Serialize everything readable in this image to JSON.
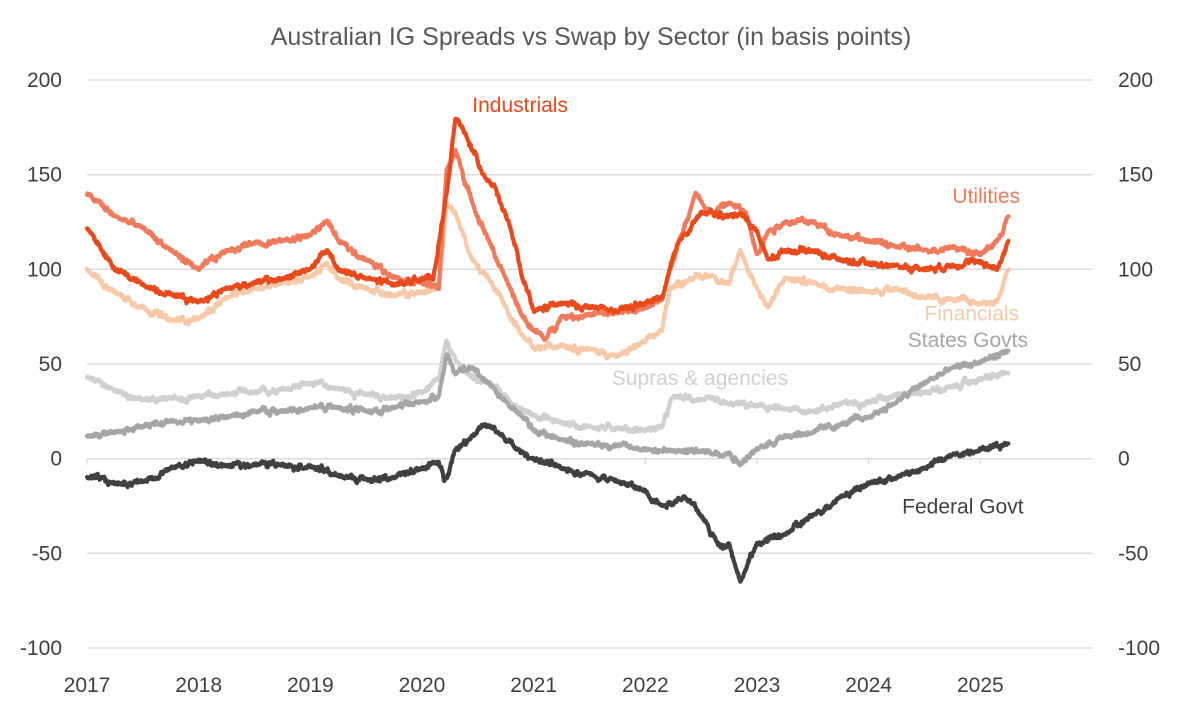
{
  "chart_data": {
    "type": "line",
    "title": "Australian IG Spreads vs Swap by Sector (in basis points)",
    "xlabel": "",
    "ylabel": "",
    "xlim": [
      2017.0,
      2026.0
    ],
    "ylim": [
      -100,
      200
    ],
    "yticks": [
      200,
      150,
      100,
      50,
      0,
      -50,
      -100
    ],
    "ytick_labels": [
      "200",
      "150",
      "100",
      "50",
      "0",
      "-50",
      "-100"
    ],
    "xticks": [
      2017,
      2018,
      2019,
      2020,
      2021,
      2022,
      2023,
      2024,
      2025
    ],
    "xtick_labels": [
      "2017",
      "2018",
      "2019",
      "2020",
      "2021",
      "2022",
      "2023",
      "2024",
      "2025"
    ],
    "grid": true,
    "series": [
      {
        "name": "Supras & agencies",
        "color": "#d0d0d0",
        "x": [
          2017.0,
          2017.25,
          2017.5,
          2017.75,
          2018.0,
          2018.25,
          2018.5,
          2018.75,
          2019.0,
          2019.25,
          2019.5,
          2019.75,
          2020.0,
          2020.15,
          2020.22,
          2020.3,
          2020.4,
          2020.6,
          2020.75,
          2020.85,
          2021.0,
          2021.25,
          2021.5,
          2021.75,
          2022.0,
          2022.15,
          2022.25,
          2022.5,
          2022.75,
          2023.0,
          2023.25,
          2023.5,
          2023.75,
          2024.0,
          2024.25,
          2024.5,
          2024.75,
          2025.0,
          2025.25
        ],
        "values": [
          43,
          36,
          31,
          32,
          33,
          34,
          35,
          37,
          40,
          37,
          34,
          32,
          35,
          42,
          62,
          52,
          45,
          40,
          33,
          27,
          23,
          19,
          17,
          16,
          15,
          17,
          33,
          31,
          29,
          28,
          26,
          25,
          29,
          30,
          34,
          35,
          38,
          42,
          45
        ]
      },
      {
        "name": "Financials",
        "color": "#f8c9a8",
        "x": [
          2017.0,
          2017.25,
          2017.5,
          2017.75,
          2018.0,
          2018.25,
          2018.5,
          2018.75,
          2019.0,
          2019.15,
          2019.25,
          2019.5,
          2019.75,
          2020.0,
          2020.15,
          2020.22,
          2020.3,
          2020.45,
          2020.6,
          2020.75,
          2020.9,
          2021.0,
          2021.25,
          2021.5,
          2021.75,
          2022.0,
          2022.15,
          2022.22,
          2022.4,
          2022.6,
          2022.75,
          2022.85,
          2023.0,
          2023.1,
          2023.25,
          2023.5,
          2023.75,
          2024.0,
          2024.25,
          2024.5,
          2024.75,
          2025.0,
          2025.15,
          2025.25
        ],
        "values": [
          100,
          88,
          80,
          73,
          74,
          85,
          90,
          93,
          96,
          103,
          95,
          90,
          86,
          88,
          90,
          135,
          130,
          105,
          95,
          80,
          65,
          58,
          60,
          58,
          54,
          62,
          68,
          90,
          95,
          97,
          92,
          110,
          90,
          80,
          95,
          93,
          90,
          88,
          90,
          85,
          84,
          82,
          83,
          100
        ]
      },
      {
        "name": "Utilities",
        "color": "#f07b5c",
        "x": [
          2017.0,
          2017.25,
          2017.5,
          2017.75,
          2018.0,
          2018.25,
          2018.5,
          2018.75,
          2019.0,
          2019.15,
          2019.25,
          2019.5,
          2019.75,
          2020.0,
          2020.15,
          2020.22,
          2020.3,
          2020.45,
          2020.6,
          2020.75,
          2020.9,
          2021.0,
          2021.1,
          2021.25,
          2021.5,
          2021.75,
          2022.0,
          2022.15,
          2022.3,
          2022.45,
          2022.6,
          2022.75,
          2022.9,
          2023.0,
          2023.1,
          2023.25,
          2023.5,
          2023.75,
          2024.0,
          2024.25,
          2024.5,
          2024.75,
          2025.0,
          2025.15,
          2025.25
        ],
        "values": [
          140,
          128,
          122,
          110,
          100,
          110,
          114,
          115,
          118,
          126,
          115,
          105,
          96,
          93,
          90,
          152,
          163,
          135,
          115,
          95,
          75,
          68,
          63,
          75,
          76,
          77,
          80,
          84,
          115,
          140,
          130,
          135,
          130,
          108,
          120,
          125,
          125,
          118,
          115,
          112,
          110,
          112,
          108,
          115,
          128
        ]
      },
      {
        "name": "Industrials",
        "color": "#e84a1c",
        "x": [
          2017.0,
          2017.25,
          2017.5,
          2017.75,
          2018.0,
          2018.25,
          2018.5,
          2018.75,
          2019.0,
          2019.15,
          2019.25,
          2019.5,
          2019.75,
          2020.0,
          2020.1,
          2020.22,
          2020.3,
          2020.4,
          2020.55,
          2020.65,
          2020.8,
          2020.9,
          2021.0,
          2021.25,
          2021.5,
          2021.75,
          2022.0,
          2022.15,
          2022.3,
          2022.5,
          2022.75,
          2022.85,
          2023.0,
          2023.1,
          2023.25,
          2023.5,
          2023.75,
          2024.0,
          2024.25,
          2024.5,
          2024.75,
          2025.0,
          2025.15,
          2025.25
        ],
        "values": [
          122,
          100,
          92,
          87,
          83,
          90,
          93,
          95,
          100,
          110,
          100,
          95,
          92,
          95,
          95,
          140,
          180,
          170,
          150,
          144,
          120,
          95,
          78,
          82,
          80,
          78,
          82,
          85,
          115,
          130,
          128,
          130,
          120,
          105,
          110,
          110,
          105,
          103,
          102,
          100,
          102,
          104,
          100,
          115
        ]
      },
      {
        "name": "States Govts",
        "color": "#a6a6a6",
        "x": [
          2017.0,
          2017.25,
          2017.5,
          2017.75,
          2018.0,
          2018.25,
          2018.5,
          2018.75,
          2019.0,
          2019.25,
          2019.5,
          2019.75,
          2020.0,
          2020.15,
          2020.22,
          2020.3,
          2020.45,
          2020.6,
          2020.75,
          2020.9,
          2021.0,
          2021.25,
          2021.5,
          2021.75,
          2022.0,
          2022.25,
          2022.5,
          2022.75,
          2022.85,
          2023.0,
          2023.25,
          2023.5,
          2023.75,
          2024.0,
          2024.25,
          2024.5,
          2024.75,
          2025.0,
          2025.25
        ],
        "values": [
          12,
          14,
          17,
          20,
          20,
          22,
          25,
          25,
          27,
          27,
          25,
          27,
          30,
          33,
          55,
          45,
          48,
          40,
          30,
          22,
          15,
          10,
          8,
          7,
          5,
          4,
          4,
          3,
          -3,
          5,
          12,
          14,
          18,
          22,
          30,
          40,
          48,
          51,
          57
        ]
      },
      {
        "name": "Federal Govt",
        "color": "#404040",
        "x": [
          2017.0,
          2017.25,
          2017.5,
          2017.75,
          2018.0,
          2018.25,
          2018.5,
          2018.75,
          2019.0,
          2019.25,
          2019.5,
          2019.75,
          2020.0,
          2020.15,
          2020.2,
          2020.3,
          2020.45,
          2020.55,
          2020.7,
          2020.85,
          2021.0,
          2021.25,
          2021.5,
          2021.75,
          2022.0,
          2022.15,
          2022.35,
          2022.5,
          2022.65,
          2022.75,
          2022.8,
          2022.85,
          2023.0,
          2023.25,
          2023.5,
          2023.75,
          2024.0,
          2024.25,
          2024.5,
          2024.75,
          2025.0,
          2025.25
        ],
        "values": [
          -10,
          -13,
          -12,
          -5,
          -1,
          -4,
          -3,
          -3,
          -4,
          -9,
          -11,
          -10,
          -5,
          -2,
          -12,
          5,
          12,
          18,
          13,
          5,
          0,
          -5,
          -8,
          -12,
          -17,
          -25,
          -20,
          -30,
          -45,
          -45,
          -55,
          -65,
          -45,
          -40,
          -30,
          -20,
          -13,
          -10,
          -5,
          2,
          5,
          8
        ]
      }
    ],
    "annotations": [
      {
        "text": "Industrials",
        "series": "Industrials",
        "x": 2020.45,
        "y": 183,
        "color": "#e84a1c"
      },
      {
        "text": "Utilities",
        "series": "Utilities",
        "x": 2024.75,
        "y": 135,
        "color": "#f07b5c"
      },
      {
        "text": "Financials",
        "series": "Financials",
        "x": 2024.5,
        "y": 73,
        "color": "#f8c9a8"
      },
      {
        "text": "States Govts",
        "series": "States Govts",
        "x": 2024.35,
        "y": 59,
        "color": "#a6a6a6"
      },
      {
        "text": "Supras & agencies",
        "series": "Supras & agencies",
        "x": 2021.7,
        "y": 39,
        "color": "#d0d0d0"
      },
      {
        "text": "Federal Govt",
        "series": "Federal Govt",
        "x": 2024.3,
        "y": -29,
        "color": "#404040"
      }
    ]
  }
}
